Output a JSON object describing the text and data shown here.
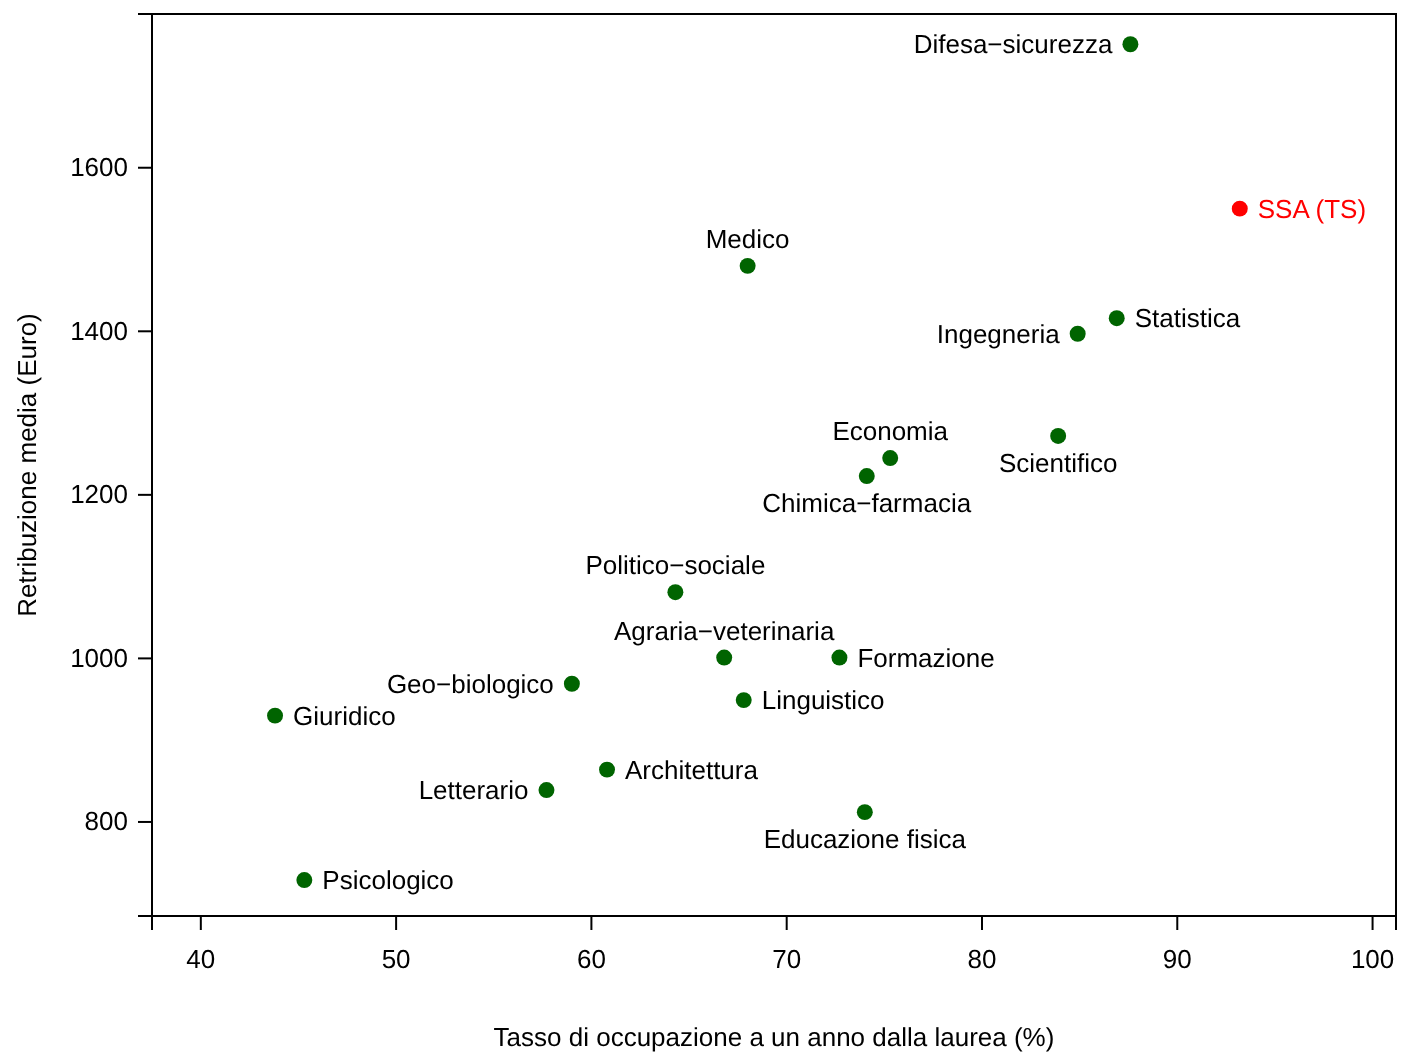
{
  "chart_data": {
    "type": "scatter",
    "xlabel": "Tasso di occupazione a un anno dalla laurea (%)",
    "ylabel": "Retribuzione media (Euro)",
    "xlim": [
      37.5,
      101.2
    ],
    "ylim": [
      685,
      1788
    ],
    "xticks": [
      40,
      50,
      60,
      70,
      80,
      90,
      100
    ],
    "yticks": [
      800,
      1000,
      1200,
      1400,
      1600
    ],
    "grid": false,
    "marker": "circle",
    "series": [
      {
        "name": "Difesa−sicurezza",
        "color": "#006400",
        "x": [
          87.6
        ],
        "values": [
          1751
        ]
      },
      {
        "name": "SSA (TS)",
        "color": "#ff0000",
        "x": [
          93.2
        ],
        "values": [
          1550
        ]
      },
      {
        "name": "Medico",
        "color": "#006400",
        "x": [
          68.0
        ],
        "values": [
          1480
        ]
      },
      {
        "name": "Statistica",
        "color": "#006400",
        "x": [
          86.9
        ],
        "values": [
          1416
        ]
      },
      {
        "name": "Ingegneria",
        "color": "#006400",
        "x": [
          84.9
        ],
        "values": [
          1397
        ]
      },
      {
        "name": "Scientifico",
        "color": "#006400",
        "x": [
          83.9
        ],
        "values": [
          1272
        ]
      },
      {
        "name": "Economia",
        "color": "#006400",
        "x": [
          75.3
        ],
        "values": [
          1245
        ]
      },
      {
        "name": "Chimica−farmacia",
        "color": "#006400",
        "x": [
          74.1
        ],
        "values": [
          1223
        ]
      },
      {
        "name": "Politico−sociale",
        "color": "#006400",
        "x": [
          64.3
        ],
        "values": [
          1081
        ]
      },
      {
        "name": "Agraria−veterinaria",
        "color": "#006400",
        "x": [
          66.8
        ],
        "values": [
          1001
        ]
      },
      {
        "name": "Formazione",
        "color": "#006400",
        "x": [
          72.7
        ],
        "values": [
          1001
        ]
      },
      {
        "name": "Geo−biologico",
        "color": "#006400",
        "x": [
          59.0
        ],
        "values": [
          969
        ]
      },
      {
        "name": "Linguistico",
        "color": "#006400",
        "x": [
          67.8
        ],
        "values": [
          949
        ]
      },
      {
        "name": "Giuridico",
        "color": "#006400",
        "x": [
          43.8
        ],
        "values": [
          930
        ]
      },
      {
        "name": "Architettura",
        "color": "#006400",
        "x": [
          60.8
        ],
        "values": [
          864
        ]
      },
      {
        "name": "Letterario",
        "color": "#006400",
        "x": [
          57.7
        ],
        "values": [
          839
        ]
      },
      {
        "name": "Educazione fisica",
        "color": "#006400",
        "x": [
          74.0
        ],
        "values": [
          812
        ]
      },
      {
        "name": "Psicologico",
        "color": "#006400",
        "x": [
          45.3
        ],
        "values": [
          729
        ]
      }
    ]
  }
}
